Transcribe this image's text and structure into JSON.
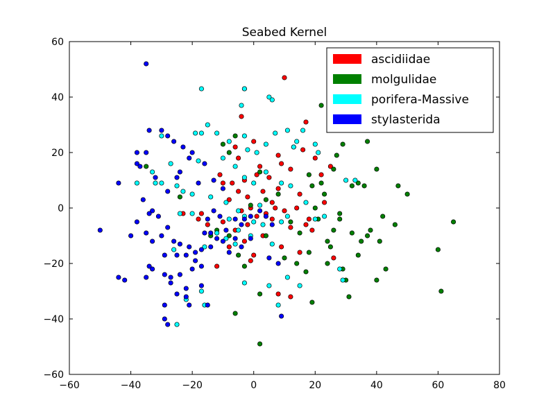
{
  "chart_data": {
    "type": "scatter",
    "title": "Seabed Kernel",
    "xlabel": "",
    "ylabel": "",
    "xlim": [
      -60,
      80
    ],
    "ylim": [
      -60,
      60
    ],
    "xticks": [
      -60,
      -40,
      -20,
      0,
      20,
      40,
      60,
      80
    ],
    "yticks": [
      -60,
      -40,
      -20,
      0,
      20,
      40,
      60
    ],
    "xtick_labels": [
      "−60",
      "−40",
      "−20",
      "0",
      "20",
      "40",
      "60",
      "80"
    ],
    "ytick_labels": [
      "−60",
      "−40",
      "−20",
      "0",
      "20",
      "40",
      "60"
    ],
    "grid": false,
    "legend_position": "top-right",
    "series": [
      {
        "name": "ascidiidae",
        "color": "#ff0000",
        "points": [
          [
            -3,
            43
          ],
          [
            10,
            47
          ],
          [
            -4,
            33
          ],
          [
            17,
            31
          ],
          [
            -6,
            22
          ],
          [
            8,
            19
          ],
          [
            13,
            22
          ],
          [
            16,
            21
          ],
          [
            -11,
            12
          ],
          [
            -10,
            9
          ],
          [
            -7,
            9
          ],
          [
            -3,
            10
          ],
          [
            2,
            15
          ],
          [
            5,
            11
          ],
          [
            9,
            16
          ],
          [
            12,
            14
          ],
          [
            6,
            2
          ],
          [
            -8,
            3
          ],
          [
            -5,
            6
          ],
          [
            -2,
            4
          ],
          [
            1,
            -3
          ],
          [
            4,
            -2
          ],
          [
            7,
            0
          ],
          [
            -10,
            -5
          ],
          [
            -6,
            -8
          ],
          [
            -3,
            -12
          ],
          [
            0,
            -17
          ],
          [
            3,
            -10
          ],
          [
            9,
            -14
          ],
          [
            12,
            -7
          ],
          [
            -15,
            -6
          ],
          [
            -17,
            -2
          ],
          [
            -18,
            -4
          ],
          [
            -23,
            -2
          ],
          [
            -12,
            -21
          ],
          [
            -1,
            -19
          ],
          [
            8,
            -31
          ],
          [
            12,
            -32
          ],
          [
            15,
            -16
          ],
          [
            17,
            -6
          ],
          [
            18,
            -4
          ],
          [
            23,
            2
          ],
          [
            26,
            -18
          ],
          [
            22,
            12
          ],
          [
            25,
            15
          ],
          [
            20,
            18
          ],
          [
            14,
            0
          ],
          [
            -2,
            -6
          ],
          [
            3,
            6
          ],
          [
            -5,
            18
          ],
          [
            0,
            24
          ],
          [
            10,
            -1
          ],
          [
            6,
            -4
          ],
          [
            -8,
            -14
          ],
          [
            15,
            5
          ],
          [
            19,
            -8
          ],
          [
            -4,
            -1
          ],
          [
            1,
            12
          ],
          [
            -1,
            0
          ],
          [
            8,
            7
          ]
        ]
      },
      {
        "name": "molgulidae",
        "color": "#008000",
        "points": [
          [
            22,
            37
          ],
          [
            37,
            24
          ],
          [
            29,
            23
          ],
          [
            27,
            19
          ],
          [
            40,
            14
          ],
          [
            34,
            9
          ],
          [
            36,
            8
          ],
          [
            47,
            8
          ],
          [
            50,
            5
          ],
          [
            65,
            -5
          ],
          [
            60,
            -15
          ],
          [
            61,
            -30
          ],
          [
            43,
            -22
          ],
          [
            40,
            -26
          ],
          [
            38,
            -8
          ],
          [
            46,
            -6
          ],
          [
            41,
            -12
          ],
          [
            32,
            -9
          ],
          [
            35,
            -12
          ],
          [
            31,
            -32
          ],
          [
            30,
            -26
          ],
          [
            29,
            -22
          ],
          [
            28,
            -2
          ],
          [
            26,
            -8
          ],
          [
            24,
            -12
          ],
          [
            21,
            -4
          ],
          [
            20,
            0
          ],
          [
            23,
            5
          ],
          [
            19,
            8
          ],
          [
            22,
            9
          ],
          [
            25,
            -14
          ],
          [
            18,
            -16
          ],
          [
            19,
            -34
          ],
          [
            17,
            -23
          ],
          [
            14,
            -20
          ],
          [
            10,
            -18
          ],
          [
            4,
            -10
          ],
          [
            2,
            -31
          ],
          [
            2,
            -49
          ],
          [
            -6,
            -38
          ],
          [
            -12,
            -8
          ],
          [
            -8,
            -10
          ],
          [
            -14,
            -10
          ],
          [
            -5,
            -17
          ],
          [
            -3,
            -21
          ],
          [
            -6,
            26
          ],
          [
            -8,
            20
          ],
          [
            -10,
            23
          ],
          [
            2,
            13
          ],
          [
            8,
            5
          ],
          [
            12,
            -5
          ],
          [
            15,
            -9
          ],
          [
            18,
            12
          ],
          [
            26,
            14
          ],
          [
            32,
            8
          ],
          [
            28,
            -4
          ],
          [
            34,
            -17
          ],
          [
            37,
            -10
          ],
          [
            42,
            -3
          ],
          [
            24,
            -20
          ],
          [
            -35,
            15
          ],
          [
            -24,
            4
          ],
          [
            -1,
            1
          ],
          [
            4,
            3
          ]
        ]
      },
      {
        "name": "porifera-Massive",
        "color": "#00ffff",
        "points": [
          [
            -17,
            43
          ],
          [
            -3,
            43
          ],
          [
            -4,
            37
          ],
          [
            5,
            40
          ],
          [
            6,
            39
          ],
          [
            -15,
            30
          ],
          [
            -19,
            27
          ],
          [
            -17,
            27
          ],
          [
            -12,
            27
          ],
          [
            -30,
            26
          ],
          [
            -3,
            26
          ],
          [
            4,
            23
          ],
          [
            11,
            28
          ],
          [
            16,
            28
          ],
          [
            7,
            27
          ],
          [
            14,
            24
          ],
          [
            20,
            23
          ],
          [
            21,
            20
          ],
          [
            13,
            22
          ],
          [
            -8,
            24
          ],
          [
            -2,
            21
          ],
          [
            1,
            20
          ],
          [
            -6,
            15
          ],
          [
            -3,
            11
          ],
          [
            0,
            9
          ],
          [
            4,
            13
          ],
          [
            -10,
            18
          ],
          [
            -18,
            17
          ],
          [
            -27,
            16
          ],
          [
            -33,
            13
          ],
          [
            -32,
            9
          ],
          [
            -38,
            9
          ],
          [
            -30,
            9
          ],
          [
            -25,
            8
          ],
          [
            -23,
            6
          ],
          [
            -20,
            5
          ],
          [
            -14,
            4
          ],
          [
            -9,
            2
          ],
          [
            -5,
            -1
          ],
          [
            -3,
            -3
          ],
          [
            0,
            -5
          ],
          [
            3,
            -6
          ],
          [
            -1,
            -10
          ],
          [
            -6,
            -13
          ],
          [
            -9,
            -11
          ],
          [
            -12,
            -9
          ],
          [
            -16,
            -14
          ],
          [
            -20,
            -2
          ],
          [
            -24,
            -2
          ],
          [
            -26,
            -15
          ],
          [
            -17,
            -30
          ],
          [
            -22,
            -33
          ],
          [
            -16,
            -35
          ],
          [
            -25,
            -42
          ],
          [
            8,
            -35
          ],
          [
            11,
            -25
          ],
          [
            15,
            -28
          ],
          [
            28,
            -22
          ],
          [
            29,
            -26
          ],
          [
            5,
            -28
          ],
          [
            -3,
            -27
          ],
          [
            6,
            -13
          ],
          [
            9,
            -5
          ],
          [
            11,
            -3
          ],
          [
            17,
            2
          ],
          [
            20,
            -4
          ],
          [
            23,
            -3
          ],
          [
            9,
            9
          ],
          [
            12,
            8
          ],
          [
            -8,
            -4
          ],
          [
            30,
            10
          ],
          [
            33,
            10
          ],
          [
            -5,
            -8
          ],
          [
            2,
            1
          ]
        ]
      },
      {
        "name": "stylasterida",
        "color": "#0000ff",
        "points": [
          [
            -35,
            52
          ],
          [
            -34,
            28
          ],
          [
            -30,
            28
          ],
          [
            -28,
            26
          ],
          [
            -26,
            24
          ],
          [
            -38,
            20
          ],
          [
            -35,
            20
          ],
          [
            -38,
            16
          ],
          [
            -37,
            15
          ],
          [
            -32,
            11
          ],
          [
            -24,
            13
          ],
          [
            -28,
            6
          ],
          [
            -44,
            9
          ],
          [
            -36,
            3
          ],
          [
            -33,
            -1
          ],
          [
            -34,
            -2
          ],
          [
            -31,
            -3
          ],
          [
            -38,
            -5
          ],
          [
            -28,
            -7
          ],
          [
            -35,
            -9
          ],
          [
            -33,
            -12
          ],
          [
            -30,
            -10
          ],
          [
            -26,
            -12
          ],
          [
            -24,
            -13
          ],
          [
            -21,
            -14
          ],
          [
            -19,
            -16
          ],
          [
            -22,
            -17
          ],
          [
            -25,
            -17
          ],
          [
            -17,
            -15
          ],
          [
            -14,
            -14
          ],
          [
            -12,
            -11
          ],
          [
            -10,
            -12
          ],
          [
            -8,
            -16
          ],
          [
            -29,
            -17
          ],
          [
            -34,
            -21
          ],
          [
            -33,
            -22
          ],
          [
            -29,
            -24
          ],
          [
            -27,
            -25
          ],
          [
            -35,
            -25
          ],
          [
            -44,
            -25
          ],
          [
            -42,
            -26
          ],
          [
            -50,
            -8
          ],
          [
            -40,
            -10
          ],
          [
            -20,
            -22
          ],
          [
            -22,
            -29
          ],
          [
            -22,
            -32
          ],
          [
            -25,
            -31
          ],
          [
            -27,
            -27
          ],
          [
            -29,
            -35
          ],
          [
            -21,
            -35
          ],
          [
            -29,
            -40
          ],
          [
            -28,
            -42
          ],
          [
            -17,
            -28
          ],
          [
            -15,
            -35
          ],
          [
            -13,
            -1
          ],
          [
            -11,
            -3
          ],
          [
            -15,
            -4
          ],
          [
            -6,
            -4
          ],
          [
            -4,
            -6
          ],
          [
            -3,
            -4
          ],
          [
            -9,
            -8
          ],
          [
            -6,
            -11
          ],
          [
            -4,
            -14
          ],
          [
            -1,
            -11
          ],
          [
            -16,
            -9
          ],
          [
            -14,
            -9
          ],
          [
            -19,
            -19
          ],
          [
            -17,
            -21
          ],
          [
            -24,
            -24
          ],
          [
            -20,
            20
          ],
          [
            -21,
            18
          ],
          [
            -23,
            22
          ],
          [
            -16,
            16
          ],
          [
            -13,
            10
          ],
          [
            -10,
            7
          ],
          [
            -18,
            9
          ],
          [
            -25,
            11
          ],
          [
            2,
            -1
          ],
          [
            4,
            -3
          ],
          [
            6,
            -6
          ],
          [
            9,
            -39
          ],
          [
            5,
            -18
          ],
          [
            8,
            -20
          ],
          [
            -1,
            -3
          ]
        ]
      }
    ]
  }
}
